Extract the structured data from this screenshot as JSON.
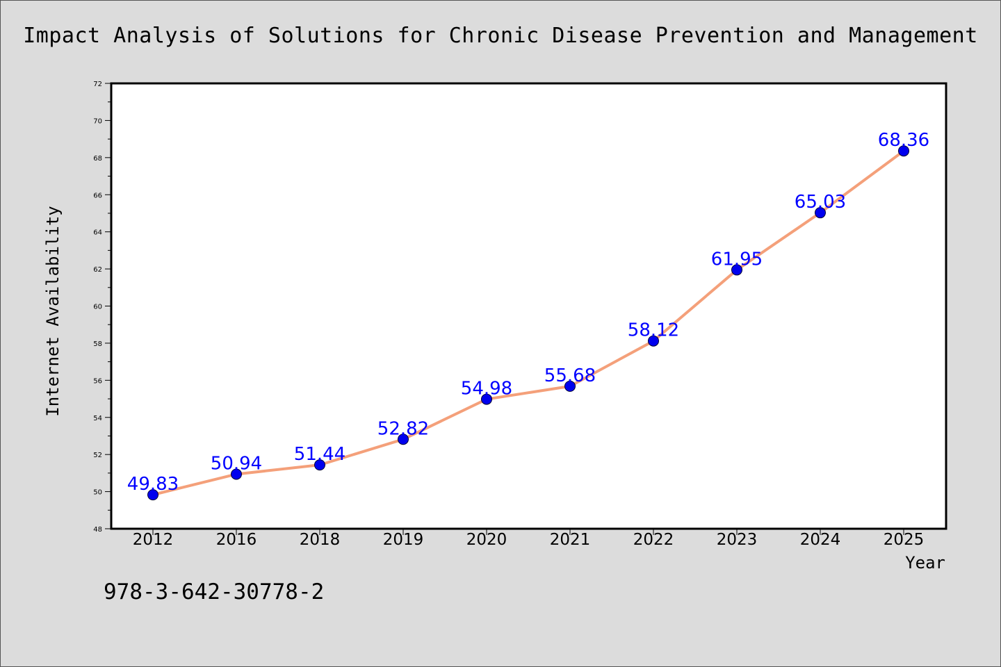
{
  "chart_data": {
    "type": "line",
    "title": "Impact Analysis of Solutions for Chronic Disease Prevention and Management",
    "xlabel": "Year",
    "ylabel": "Internet Availability",
    "categories": [
      "2012",
      "2016",
      "2018",
      "2019",
      "2020",
      "2021",
      "2022",
      "2023",
      "2024",
      "2025"
    ],
    "series": [
      {
        "values": [
          49.83,
          50.94,
          51.44,
          52.82,
          54.98,
          55.68,
          58.12,
          61.95,
          65.03,
          68.36
        ]
      }
    ],
    "data_labels": [
      "49.83",
      "50.94",
      "51.44",
      "52.82",
      "54.98",
      "55.68",
      "58.12",
      "61.95",
      "65.03",
      "68.36"
    ],
    "ylim": [
      48,
      72
    ],
    "yticks": [
      "48",
      "50",
      "52",
      "54",
      "56",
      "58",
      "60",
      "62",
      "64",
      "66",
      "68",
      "70",
      "72"
    ],
    "grid": false,
    "legend": "none",
    "colors": {
      "line": "#f4a07a",
      "marker_fill": "#0000ee",
      "marker_edge": "#000033",
      "data_label": "#0000ff",
      "background": "#dcdcdc",
      "plot_background": "#ffffff"
    }
  },
  "footnote": "978-3-642-30778-2"
}
